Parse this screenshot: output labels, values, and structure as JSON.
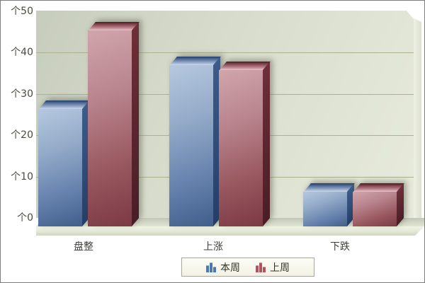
{
  "chart_data": {
    "type": "bar",
    "style": "3d-columns",
    "title": "",
    "categories": [
      "盘整",
      "上涨",
      "下跌"
    ],
    "series": [
      {
        "name": "本周",
        "color": "#4a76ae",
        "values": [
          27,
          37,
          8
        ]
      },
      {
        "name": "上周",
        "color": "#a5525c",
        "values": [
          45,
          36,
          8
        ]
      }
    ],
    "unit_prefix": "个",
    "yticks": [
      50,
      40,
      30,
      20,
      10,
      0
    ],
    "ytick_labels": [
      "个50",
      "个40",
      "个30",
      "个20",
      "个10",
      "个0"
    ],
    "ylim": [
      0,
      50
    ],
    "grid": true,
    "legend_position": "bottom-center"
  },
  "legend": {
    "items": [
      {
        "label": "本周",
        "color": "#4c78b2"
      },
      {
        "label": "上周",
        "color": "#b2525c"
      }
    ]
  },
  "colors": {
    "wall_top": "#c7cdbd",
    "wall_bottom": "#e8ebdc",
    "gridline": "#a9b392",
    "floor": "#e3e8d6",
    "axis_text": "#4b4b42",
    "frame_border": "#7e7e7e",
    "legend_bg": "#f7f7ec",
    "legend_border": "#a6a69a",
    "blue_bar_light": "#b6c8df",
    "blue_bar_dark": "#415e8c",
    "red_bar_light": "#d0a5ac",
    "red_bar_dark": "#7b3a44"
  }
}
